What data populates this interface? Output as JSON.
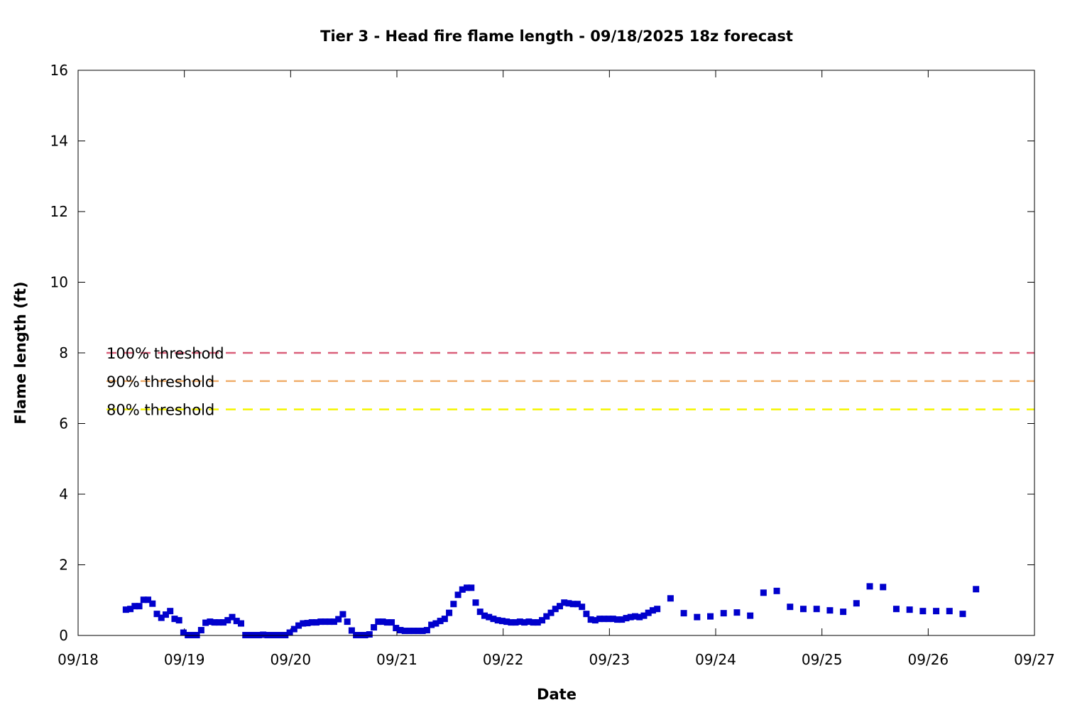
{
  "colors": {
    "points": "#0000cc",
    "threshold_100": "#d95f7a",
    "threshold_90": "#f0b070",
    "threshold_80": "#f5f500",
    "axis": "#000000",
    "background": "#ffffff"
  },
  "chart_data": {
    "type": "scatter",
    "title": "Tier 3 - Head fire flame length - 09/18/2025 18z forecast",
    "xlabel": "Date",
    "ylabel": "Flame length (ft)",
    "x_ticks": [
      "09/18",
      "09/19",
      "09/20",
      "09/21",
      "09/22",
      "09/23",
      "09/24",
      "09/25",
      "09/26",
      "09/27"
    ],
    "y_ticks": [
      "0",
      "2",
      "4",
      "6",
      "8",
      "10",
      "12",
      "14",
      "16"
    ],
    "xlim": [
      "09/18 00:00",
      "09/27 00:00"
    ],
    "ylim": [
      0,
      16
    ],
    "grid": false,
    "legend_position": "left",
    "thresholds": [
      {
        "name": "100% threshold",
        "value": 8.0,
        "color": "#d95f7a",
        "style": "dashed"
      },
      {
        "name": "90% threshold",
        "value": 7.2,
        "color": "#f0b070",
        "style": "dashed"
      },
      {
        "name": "80% threshold",
        "value": 6.4,
        "color": "#f5f500",
        "style": "dashed"
      }
    ],
    "series": [
      {
        "color": "#0000cc",
        "marker": "square",
        "points": [
          [
            "09/18 10:48",
            0.73
          ],
          [
            "09/18 11:48",
            0.75
          ],
          [
            "09/18 12:48",
            0.83
          ],
          [
            "09/18 13:48",
            0.83
          ],
          [
            "09/18 14:48",
            1.01
          ],
          [
            "09/18 15:48",
            1.01
          ],
          [
            "09/18 16:48",
            0.9
          ],
          [
            "09/18 17:48",
            0.61
          ],
          [
            "09/18 18:48",
            0.5
          ],
          [
            "09/18 19:48",
            0.59
          ],
          [
            "09/18 20:48",
            0.69
          ],
          [
            "09/18 21:48",
            0.47
          ],
          [
            "09/18 22:48",
            0.43
          ],
          [
            "09/18 23:48",
            0.08
          ],
          [
            "09/19 00:48",
            0.01
          ],
          [
            "09/19 01:48",
            0.01
          ],
          [
            "09/19 02:48",
            0.01
          ],
          [
            "09/19 03:48",
            0.15
          ],
          [
            "09/19 04:48",
            0.36
          ],
          [
            "09/19 05:48",
            0.39
          ],
          [
            "09/19 06:48",
            0.37
          ],
          [
            "09/19 07:48",
            0.37
          ],
          [
            "09/19 08:48",
            0.37
          ],
          [
            "09/19 09:48",
            0.43
          ],
          [
            "09/19 10:48",
            0.52
          ],
          [
            "09/19 11:48",
            0.41
          ],
          [
            "09/19 12:48",
            0.34
          ],
          [
            "09/19 13:48",
            0.01
          ],
          [
            "09/19 14:48",
            0.01
          ],
          [
            "09/19 15:48",
            0.01
          ],
          [
            "09/19 16:48",
            0.01
          ],
          [
            "09/19 17:48",
            0.02
          ],
          [
            "09/19 18:48",
            0.01
          ],
          [
            "09/19 19:48",
            0.01
          ],
          [
            "09/19 20:48",
            0.01
          ],
          [
            "09/19 21:48",
            0.01
          ],
          [
            "09/19 22:48",
            0.01
          ],
          [
            "09/19 23:48",
            0.08
          ],
          [
            "09/20 00:48",
            0.18
          ],
          [
            "09/20 01:48",
            0.28
          ],
          [
            "09/20 02:48",
            0.34
          ],
          [
            "09/20 03:48",
            0.35
          ],
          [
            "09/20 04:48",
            0.37
          ],
          [
            "09/20 05:48",
            0.37
          ],
          [
            "09/20 06:48",
            0.39
          ],
          [
            "09/20 07:48",
            0.39
          ],
          [
            "09/20 08:48",
            0.39
          ],
          [
            "09/20 09:48",
            0.39
          ],
          [
            "09/20 10:48",
            0.46
          ],
          [
            "09/20 11:48",
            0.6
          ],
          [
            "09/20 12:48",
            0.39
          ],
          [
            "09/20 13:48",
            0.14
          ],
          [
            "09/20 14:48",
            0.01
          ],
          [
            "09/20 15:48",
            0.01
          ],
          [
            "09/20 16:48",
            0.01
          ],
          [
            "09/20 17:48",
            0.03
          ],
          [
            "09/20 18:48",
            0.23
          ],
          [
            "09/20 19:48",
            0.39
          ],
          [
            "09/20 20:48",
            0.39
          ],
          [
            "09/20 21:48",
            0.37
          ],
          [
            "09/20 22:48",
            0.37
          ],
          [
            "09/20 23:48",
            0.21
          ],
          [
            "09/21 00:48",
            0.15
          ],
          [
            "09/21 01:48",
            0.13
          ],
          [
            "09/21 02:48",
            0.13
          ],
          [
            "09/21 03:48",
            0.13
          ],
          [
            "09/21 04:48",
            0.13
          ],
          [
            "09/21 05:48",
            0.13
          ],
          [
            "09/21 06:48",
            0.15
          ],
          [
            "09/21 07:48",
            0.3
          ],
          [
            "09/21 08:48",
            0.34
          ],
          [
            "09/21 09:48",
            0.41
          ],
          [
            "09/21 10:48",
            0.47
          ],
          [
            "09/21 11:48",
            0.64
          ],
          [
            "09/21 12:48",
            0.89
          ],
          [
            "09/21 13:48",
            1.15
          ],
          [
            "09/21 14:48",
            1.3
          ],
          [
            "09/21 15:48",
            1.35
          ],
          [
            "09/21 16:48",
            1.35
          ],
          [
            "09/21 17:48",
            0.93
          ],
          [
            "09/21 18:48",
            0.67
          ],
          [
            "09/21 19:48",
            0.56
          ],
          [
            "09/21 20:48",
            0.52
          ],
          [
            "09/21 21:48",
            0.47
          ],
          [
            "09/21 22:48",
            0.43
          ],
          [
            "09/21 23:48",
            0.41
          ],
          [
            "09/22 00:48",
            0.39
          ],
          [
            "09/22 01:48",
            0.37
          ],
          [
            "09/22 02:48",
            0.37
          ],
          [
            "09/22 03:48",
            0.39
          ],
          [
            "09/22 04:48",
            0.37
          ],
          [
            "09/22 05:48",
            0.39
          ],
          [
            "09/22 06:48",
            0.37
          ],
          [
            "09/22 07:48",
            0.37
          ],
          [
            "09/22 08:48",
            0.43
          ],
          [
            "09/22 09:48",
            0.54
          ],
          [
            "09/22 10:48",
            0.64
          ],
          [
            "09/22 11:48",
            0.75
          ],
          [
            "09/22 12:48",
            0.83
          ],
          [
            "09/22 13:48",
            0.93
          ],
          [
            "09/22 14:48",
            0.91
          ],
          [
            "09/22 15:48",
            0.89
          ],
          [
            "09/22 16:48",
            0.89
          ],
          [
            "09/22 17:48",
            0.81
          ],
          [
            "09/22 18:48",
            0.61
          ],
          [
            "09/22 19:48",
            0.45
          ],
          [
            "09/22 20:48",
            0.43
          ],
          [
            "09/22 21:48",
            0.47
          ],
          [
            "09/22 22:48",
            0.47
          ],
          [
            "09/22 23:48",
            0.47
          ],
          [
            "09/23 00:48",
            0.47
          ],
          [
            "09/23 01:48",
            0.45
          ],
          [
            "09/23 02:48",
            0.45
          ],
          [
            "09/23 03:48",
            0.49
          ],
          [
            "09/23 04:48",
            0.52
          ],
          [
            "09/23 05:48",
            0.54
          ],
          [
            "09/23 06:48",
            0.52
          ],
          [
            "09/23 07:48",
            0.56
          ],
          [
            "09/23 08:48",
            0.64
          ],
          [
            "09/23 09:48",
            0.71
          ],
          [
            "09/23 10:48",
            0.75
          ],
          [
            "09/23 13:48",
            1.05
          ],
          [
            "09/23 16:48",
            0.63
          ],
          [
            "09/23 19:48",
            0.52
          ],
          [
            "09/23 22:48",
            0.54
          ],
          [
            "09/24 01:48",
            0.63
          ],
          [
            "09/24 04:48",
            0.65
          ],
          [
            "09/24 07:48",
            0.56
          ],
          [
            "09/24 10:48",
            1.21
          ],
          [
            "09/24 13:48",
            1.26
          ],
          [
            "09/24 16:48",
            0.81
          ],
          [
            "09/24 19:48",
            0.75
          ],
          [
            "09/24 22:48",
            0.75
          ],
          [
            "09/25 01:48",
            0.71
          ],
          [
            "09/25 04:48",
            0.67
          ],
          [
            "09/25 07:48",
            0.91
          ],
          [
            "09/25 10:48",
            1.39
          ],
          [
            "09/25 13:48",
            1.37
          ],
          [
            "09/25 16:48",
            0.75
          ],
          [
            "09/25 19:48",
            0.73
          ],
          [
            "09/25 22:48",
            0.69
          ],
          [
            "09/26 01:48",
            0.69
          ],
          [
            "09/26 04:48",
            0.69
          ],
          [
            "09/26 07:48",
            0.61
          ],
          [
            "09/26 10:48",
            1.31
          ]
        ]
      }
    ]
  }
}
